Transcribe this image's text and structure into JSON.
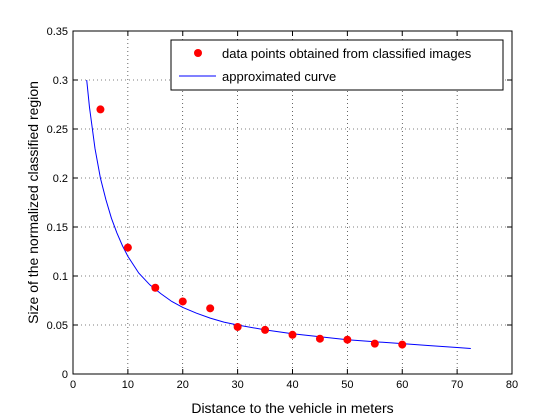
{
  "chart_data": {
    "type": "scatter",
    "xlabel": "Distance to the vehicle in meters",
    "ylabel": "Size of the normalized classified region",
    "xlim": [
      0,
      80
    ],
    "ylim": [
      0,
      0.35
    ],
    "xticks": [
      0,
      10,
      20,
      30,
      40,
      50,
      60,
      70,
      80
    ],
    "yticks": [
      0,
      0.05,
      0.1,
      0.15,
      0.2,
      0.25,
      0.3,
      0.35
    ],
    "grid": true,
    "legend_position": "top-right",
    "series": [
      {
        "name": "data points obtained from classified images",
        "kind": "points",
        "color": "#ff0000",
        "x": [
          5,
          10,
          15,
          20,
          25,
          30,
          35,
          40,
          45,
          50,
          55,
          60
        ],
        "y": [
          0.27,
          0.129,
          0.088,
          0.074,
          0.067,
          0.048,
          0.045,
          0.04,
          0.036,
          0.035,
          0.031,
          0.03
        ]
      },
      {
        "name": "approximated curve",
        "kind": "line",
        "color": "#0000ff",
        "x": [
          2.5,
          3,
          4,
          5,
          6,
          7,
          8,
          9,
          10,
          12,
          14,
          16,
          18,
          20,
          22.5,
          25,
          27.5,
          30,
          35,
          40,
          45,
          50,
          55,
          60,
          65,
          70,
          72.5
        ],
        "y": [
          0.3,
          0.272,
          0.23,
          0.2,
          0.178,
          0.159,
          0.144,
          0.131,
          0.12,
          0.103,
          0.091,
          0.082,
          0.074,
          0.068,
          0.062,
          0.057,
          0.053,
          0.05,
          0.045,
          0.041,
          0.038,
          0.035,
          0.033,
          0.031,
          0.029,
          0.027,
          0.026
        ]
      }
    ]
  }
}
